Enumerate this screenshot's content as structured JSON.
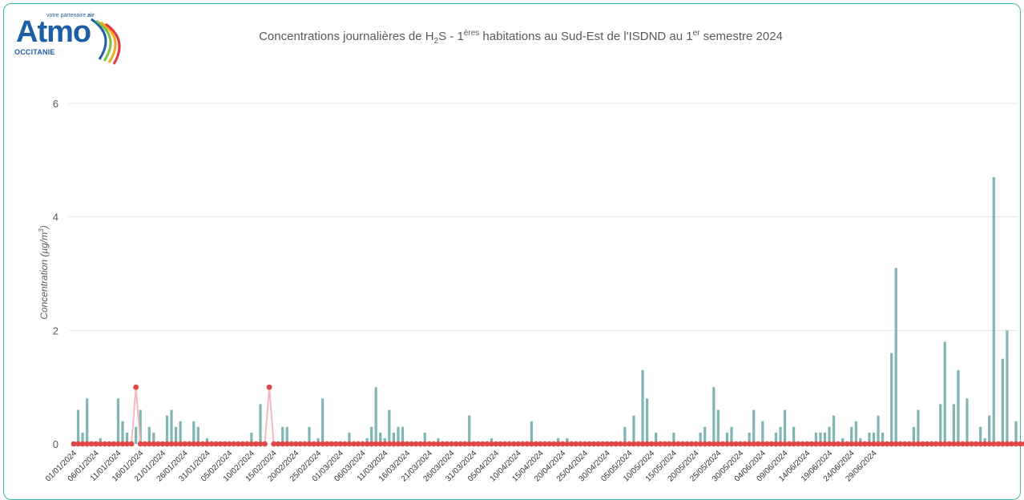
{
  "logo": {
    "tagline_pre": "votre partenaire",
    "tagline_bold": "air",
    "word": "Atmo",
    "region": "OCCITANIE"
  },
  "title": {
    "part1": "Concentrations journalières de H",
    "sub": "2",
    "part2": "S - 1",
    "sup1": "ères",
    "part3": " habitations au Sud-Est de l'ISDND au 1",
    "sup2": "er",
    "part4": " semestre 2024"
  },
  "colors": {
    "bar": "#7fb6b4",
    "line": "#f4b9be",
    "marker": "#e04848",
    "grid": "#e4e4e4",
    "frame": "#3fb6a8",
    "logo_blue": "#1d5fa6"
  },
  "chart_data": {
    "type": "bar",
    "title": "Concentrations journalières de H2S - 1ères habitations au Sud-Est de l'ISDND au 1er semestre 2024",
    "ylabel": "Concentration (µg/m³)",
    "ylabel_text": "Concentration (µg/m",
    "ylabel_sup": "3",
    "ylim": [
      0,
      6
    ],
    "yticks": [
      0,
      2,
      4,
      6
    ],
    "grid": true,
    "start_date": "01/01/2024",
    "end_date": "30/06/2024",
    "x_tick_labels": [
      "01/01/2024",
      "06/01/2024",
      "11/01/2024",
      "16/01/2024",
      "21/01/2024",
      "26/01/2024",
      "31/01/2024",
      "05/02/2024",
      "10/02/2024",
      "15/02/2024",
      "20/02/2024",
      "25/02/2024",
      "01/03/2024",
      "06/03/2024",
      "11/03/2024",
      "16/03/2024",
      "21/03/2024",
      "26/03/2024",
      "31/03/2024",
      "05/04/2024",
      "10/04/2024",
      "15/04/2024",
      "20/04/2024",
      "25/04/2024",
      "30/04/2024",
      "05/05/2024",
      "10/05/2024",
      "15/05/2024",
      "20/05/2024",
      "25/05/2024",
      "30/05/2024",
      "04/06/2024",
      "09/06/2024",
      "14/06/2024",
      "19/06/2024",
      "24/06/2024",
      "29/06/2024"
    ],
    "series": [
      {
        "kind": "bar",
        "values": [
          0,
          0.6,
          0.2,
          0.8,
          0,
          0,
          0.1,
          0,
          0,
          0,
          0.8,
          0.4,
          0.2,
          0,
          0.3,
          0.6,
          0,
          0.3,
          0.2,
          0,
          0,
          0.5,
          0.6,
          0.3,
          0.4,
          0,
          0,
          0.4,
          0.3,
          0,
          0.1,
          0,
          0,
          0,
          0,
          0,
          0,
          0,
          0,
          0,
          0.2,
          0,
          0.7,
          0,
          0,
          0,
          0,
          0.3,
          0.3,
          0,
          0,
          0,
          0,
          0.3,
          0,
          0.1,
          0.8,
          0,
          0,
          0,
          0,
          0,
          0.2,
          0,
          0,
          0,
          0.1,
          0.3,
          1.0,
          0.2,
          0.1,
          0.6,
          0.2,
          0.3,
          0.3,
          0,
          0,
          0,
          0,
          0.2,
          0,
          0,
          0.1,
          0,
          0,
          0,
          0,
          0,
          0,
          0.5,
          0,
          0,
          0,
          0,
          0.1,
          0,
          0,
          0,
          0,
          0,
          0,
          0,
          0,
          0.4,
          0,
          0,
          0,
          0,
          0,
          0.1,
          0,
          0.1,
          0,
          0,
          0,
          0,
          0,
          0,
          0,
          0,
          0,
          0,
          0,
          0,
          0.3,
          0,
          0.5,
          0,
          1.3,
          0.8,
          0,
          0.2,
          0,
          0,
          0,
          0.2,
          0,
          0,
          0,
          0,
          0,
          0.2,
          0.3,
          0,
          1.0,
          0.6,
          0,
          0.2,
          0.3,
          0,
          0,
          0,
          0.2,
          0.6,
          0,
          0.4,
          0,
          0,
          0.2,
          0.3,
          0.6,
          0,
          0.3,
          0,
          0,
          0,
          0,
          0.2,
          0.2,
          0.2,
          0.3,
          0.5,
          0,
          0.1,
          0,
          0.3,
          0.4,
          0.1,
          0,
          0.2,
          0.2,
          0.5,
          0.2,
          0,
          1.6,
          3.1,
          0,
          0,
          0,
          0.3,
          0.6,
          0,
          0,
          0,
          0,
          0.7,
          1.8,
          0,
          0.7,
          1.3,
          0,
          0.8,
          0,
          0,
          0.3,
          0.1,
          0.5,
          4.7,
          0,
          1.5,
          2.0,
          0,
          0.4
        ]
      },
      {
        "kind": "line",
        "values": [
          0,
          0,
          0,
          0,
          0,
          0,
          0,
          0,
          0,
          0,
          0,
          0,
          0,
          0,
          1.0,
          0,
          0,
          0,
          0,
          0,
          0,
          0,
          0,
          0,
          0,
          0,
          0,
          0,
          0,
          0,
          0,
          0,
          0,
          0,
          0,
          0,
          0,
          0,
          0,
          0,
          0,
          0,
          0,
          0,
          1.0,
          0,
          0,
          0,
          0,
          0,
          0,
          0,
          0,
          0,
          0,
          0,
          0,
          0,
          0,
          0,
          0,
          0,
          0,
          0,
          0,
          0,
          0,
          0,
          0,
          0,
          0,
          0,
          0,
          0,
          0,
          0,
          0,
          0,
          0,
          0,
          0,
          0,
          0,
          0,
          0,
          0,
          0,
          0,
          0,
          0,
          0,
          0,
          0,
          0,
          0,
          0,
          0,
          0,
          0,
          0,
          0,
          0,
          0,
          0,
          0,
          0,
          0,
          0,
          0,
          0,
          0,
          0,
          0,
          0,
          0,
          0,
          0,
          0,
          0,
          0,
          0,
          0,
          0,
          0,
          0,
          0,
          0,
          0,
          0,
          0,
          0,
          0,
          0,
          0,
          0,
          0,
          0,
          0,
          0,
          0,
          0,
          0,
          0,
          0,
          0,
          0,
          0,
          0,
          0,
          0,
          0,
          0,
          0,
          0,
          0,
          0,
          0,
          0,
          0,
          0,
          0,
          0,
          0,
          0,
          0,
          0,
          0,
          0,
          0,
          0,
          0,
          0,
          0,
          0,
          0,
          0,
          0,
          0,
          0,
          0,
          0,
          0,
          0,
          0,
          0,
          0,
          0,
          0,
          0,
          0,
          0,
          0,
          0,
          0,
          0,
          0,
          0,
          0,
          0,
          0,
          0,
          0,
          0,
          0,
          0,
          0,
          0,
          0,
          0,
          0,
          0,
          0,
          0,
          0,
          0,
          0,
          0,
          0,
          0,
          0,
          0,
          0,
          0,
          0,
          0,
          0,
          0,
          0,
          0,
          0,
          0,
          0,
          0,
          0
        ]
      }
    ]
  }
}
